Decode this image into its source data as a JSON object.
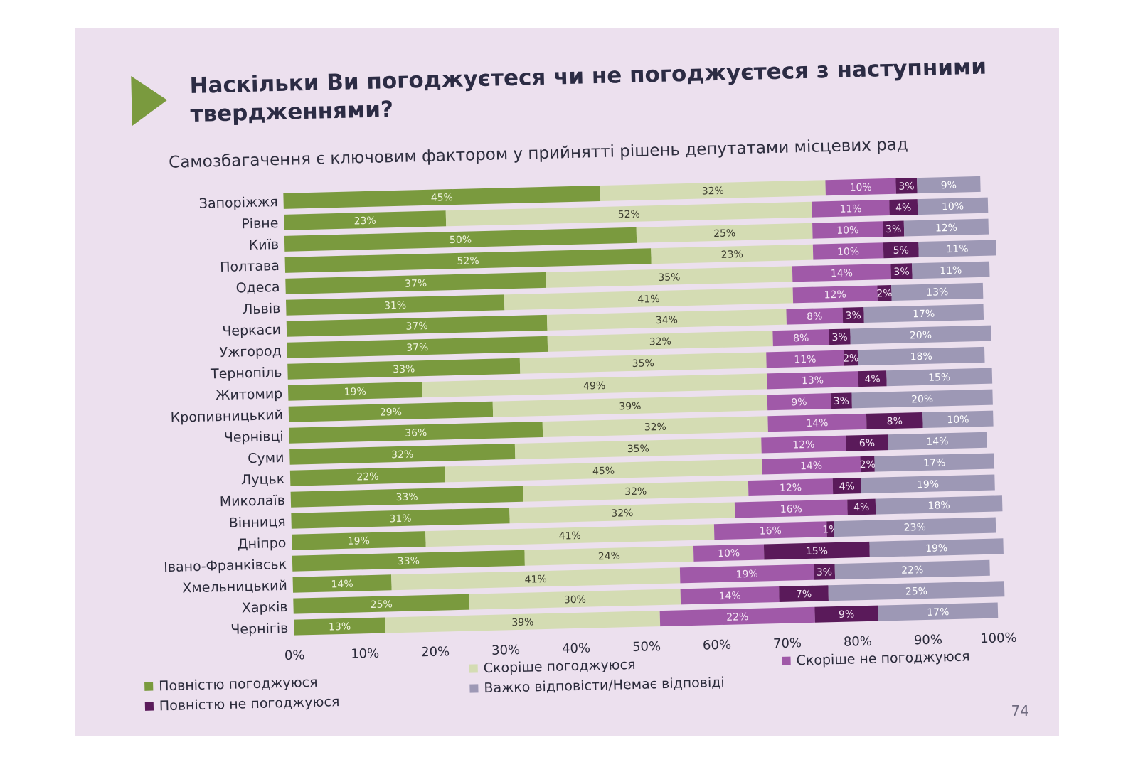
{
  "slide": {
    "title": "Наскільки Ви погоджуєтеся чи не погоджуєтеся з наступними твердженнями?",
    "subtitle": "Самозбагачення є ключовим фактором у прийнятті рішень депутатами місцевих рад",
    "page_number": "74",
    "accent_color": "#7a9a3e"
  },
  "legend": [
    {
      "label": "Повністю погоджуюся",
      "color": "#7a9a3e"
    },
    {
      "label": "Скоріше погоджуюся",
      "color": "#d4dcb3"
    },
    {
      "label": "Скоріше не погоджуюся",
      "color": "#a059a8"
    },
    {
      "label": "Повністю не погоджуюся",
      "color": "#5a1a5a"
    },
    {
      "label": "Важко відповісти/Немає відповіді",
      "color": "#9d98b5"
    }
  ],
  "chart_data": {
    "type": "bar",
    "orientation": "horizontal",
    "stacked": "percent",
    "categories": [
      "Запоріжжя",
      "Рівне",
      "Київ",
      "Полтава",
      "Одеса",
      "Львів",
      "Черкаси",
      "Ужгород",
      "Тернопіль",
      "Житомир",
      "Кропивницький",
      "Чернівці",
      "Суми",
      "Луцьк",
      "Миколаїв",
      "Вінниця",
      "Дніпро",
      "Івано-Франківськ",
      "Хмельницький",
      "Харків",
      "Чернігів"
    ],
    "series": [
      {
        "name": "Повністю погоджуюся",
        "color": "#7a9a3e",
        "label_color": "#eef2dc",
        "values": [
          45,
          23,
          50,
          52,
          37,
          31,
          37,
          37,
          33,
          19,
          29,
          36,
          32,
          22,
          33,
          31,
          19,
          33,
          14,
          25,
          13
        ]
      },
      {
        "name": "Скоріше погоджуюся",
        "color": "#d4dcb3",
        "label_color": "#3d3d30",
        "values": [
          32,
          52,
          25,
          23,
          35,
          41,
          34,
          32,
          35,
          49,
          39,
          32,
          35,
          45,
          32,
          32,
          41,
          24,
          41,
          30,
          39
        ]
      },
      {
        "name": "Скоріше не погоджуюся",
        "color": "#a059a8",
        "label_color": "#f4e8f5",
        "values": [
          10,
          11,
          10,
          10,
          14,
          12,
          8,
          8,
          11,
          13,
          9,
          14,
          12,
          14,
          12,
          16,
          16,
          10,
          19,
          14,
          22
        ]
      },
      {
        "name": "Повністю не погоджуюся",
        "color": "#5a1a5a",
        "label_color": "#f4e8f5",
        "values": [
          3,
          4,
          3,
          5,
          3,
          2,
          3,
          3,
          2,
          4,
          3,
          8,
          6,
          2,
          4,
          4,
          1,
          15,
          3,
          7,
          9
        ]
      },
      {
        "name": "Важко відповісти/Немає відповіді",
        "color": "#9d98b5",
        "label_color": "#ffffff",
        "values": [
          9,
          10,
          12,
          11,
          11,
          13,
          17,
          20,
          18,
          15,
          20,
          10,
          14,
          17,
          19,
          18,
          23,
          19,
          22,
          25,
          17
        ]
      }
    ],
    "value_suffix": "%",
    "xlim": [
      0,
      100
    ],
    "xticks": [
      "0%",
      "10%",
      "20%",
      "30%",
      "40%",
      "50%",
      "60%",
      "70%",
      "80%",
      "90%",
      "100%"
    ],
    "grid": false,
    "legend_position": "bottom"
  }
}
